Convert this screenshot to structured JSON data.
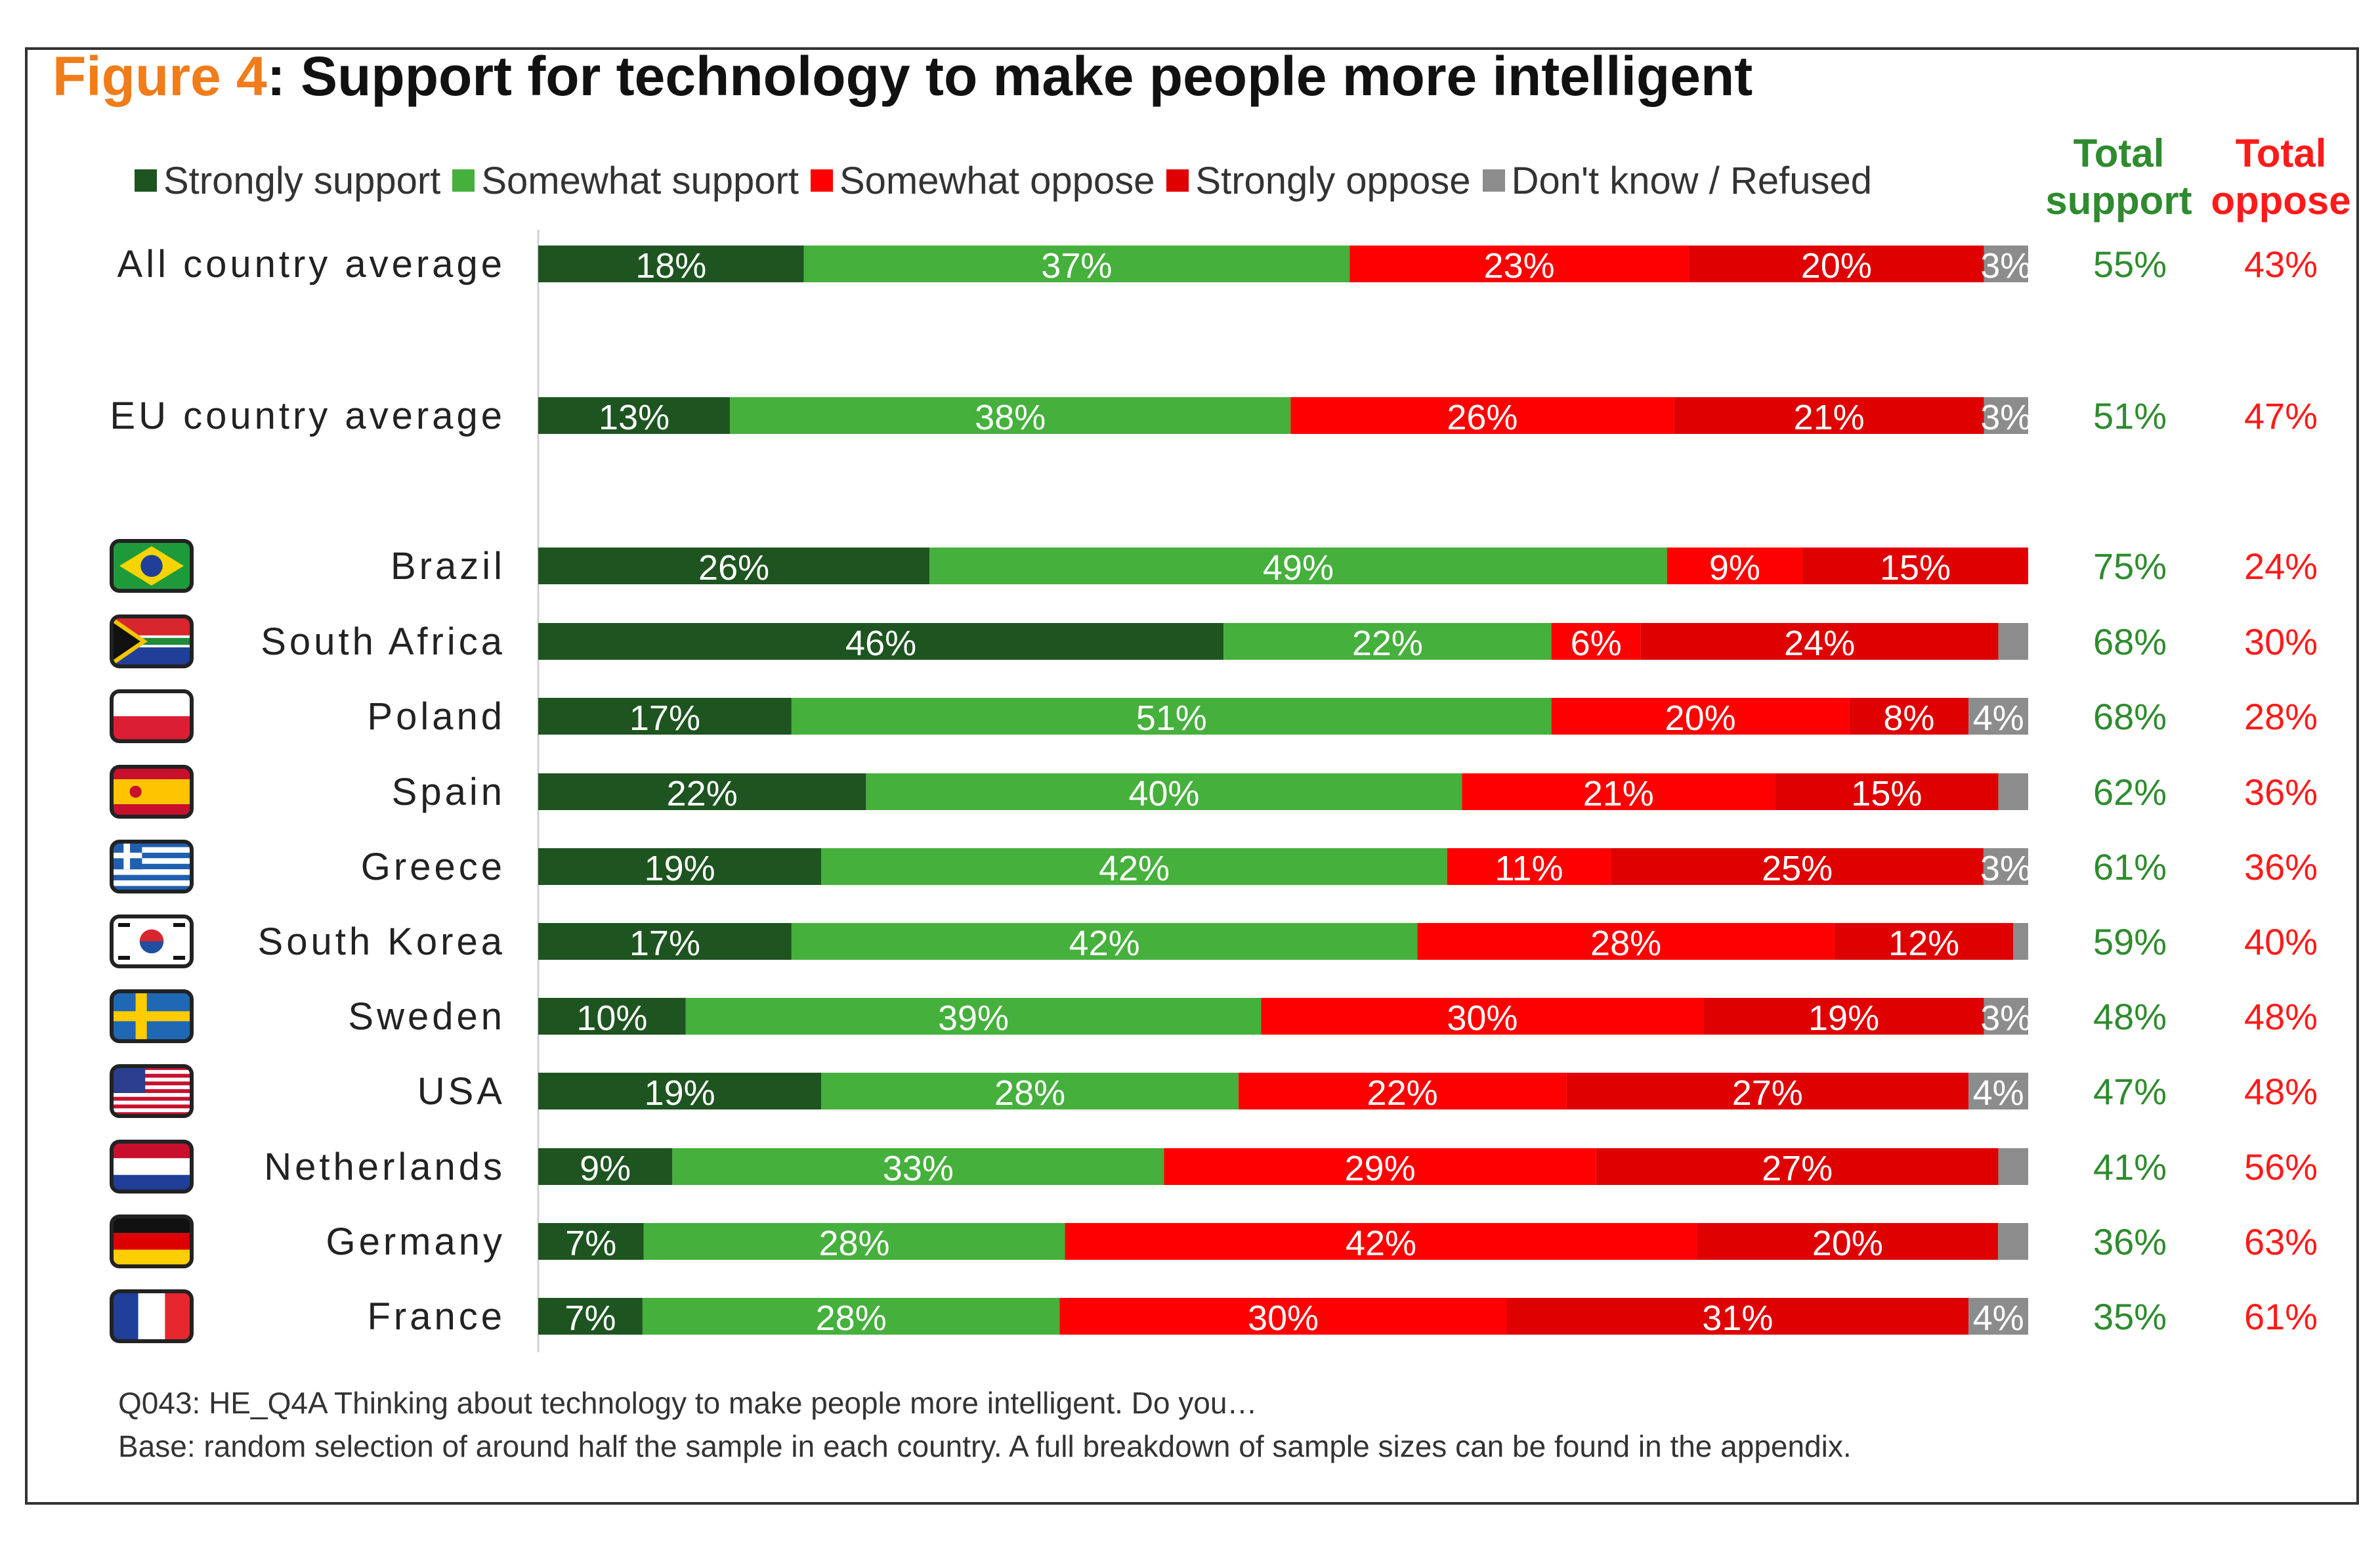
{
  "header": {
    "figure_label": "Figure 4",
    "title_rest": ": Support for technology to make people more intelligent"
  },
  "legend": [
    {
      "label": "Strongly support",
      "color": "#1e5420"
    },
    {
      "label": "Somewhat support",
      "color": "#45b03c"
    },
    {
      "label": "Somewhat oppose",
      "color": "#ff0000"
    },
    {
      "label": "Strongly oppose",
      "color": "#df0000"
    },
    {
      "label": "Don't know / Refused",
      "color": "#8c8c8c"
    }
  ],
  "columns": {
    "total_support": {
      "line1": "Total",
      "line2": "support",
      "color": "#2e8b2e"
    },
    "total_oppose": {
      "line1": "Total",
      "line2": "oppose",
      "color": "#ff1a1a"
    }
  },
  "chart_data": {
    "type": "bar",
    "orientation": "horizontal",
    "stacked": true,
    "xlim": [
      0,
      100
    ],
    "categories": [
      "All country average",
      "EU country average",
      "Brazil",
      "South Africa",
      "Poland",
      "Spain",
      "Greece",
      "South Korea",
      "Sweden",
      "USA",
      "Netherlands",
      "Germany",
      "France"
    ],
    "flags": [
      null,
      null,
      "brazil",
      "south-africa",
      "poland",
      "spain",
      "greece",
      "south-korea",
      "sweden",
      "usa",
      "netherlands",
      "germany",
      "france"
    ],
    "series": [
      {
        "name": "Strongly support",
        "values": [
          18,
          13,
          26,
          46,
          17,
          22,
          19,
          17,
          10,
          19,
          9,
          7,
          7
        ],
        "labels": [
          "18%",
          "13%",
          "26%",
          "46%",
          "17%",
          "22%",
          "19%",
          "17%",
          "10%",
          "19%",
          "9%",
          "7%",
          "7%"
        ]
      },
      {
        "name": "Somewhat support",
        "values": [
          37,
          38,
          49,
          22,
          51,
          40,
          42,
          42,
          39,
          28,
          33,
          28,
          28
        ],
        "labels": [
          "37%",
          "38%",
          "49%",
          "22%",
          "51%",
          "40%",
          "42%",
          "42%",
          "39%",
          "28%",
          "33%",
          "28%",
          "28%"
        ]
      },
      {
        "name": "Somewhat oppose",
        "values": [
          23,
          26,
          9,
          6,
          20,
          21,
          11,
          28,
          30,
          22,
          29,
          42,
          30
        ],
        "labels": [
          "23%",
          "26%",
          "9%",
          "6%",
          "20%",
          "21%",
          "11%",
          "28%",
          "30%",
          "22%",
          "29%",
          "42%",
          "30%"
        ]
      },
      {
        "name": "Strongly oppose",
        "values": [
          20,
          21,
          15,
          24,
          8,
          15,
          25,
          12,
          19,
          27,
          27,
          20,
          31
        ],
        "labels": [
          "20%",
          "21%",
          "15%",
          "24%",
          "8%",
          "15%",
          "25%",
          "12%",
          "19%",
          "27%",
          "27%",
          "20%",
          "31%"
        ]
      },
      {
        "name": "Don't know / Refused",
        "values": [
          3,
          3,
          0,
          2,
          4,
          2,
          3,
          1,
          3,
          4,
          2,
          2,
          4
        ],
        "labels": [
          "3%",
          "3%",
          "",
          "",
          "4%",
          "",
          "3%",
          "",
          "3%",
          "4%",
          "",
          "",
          "4%"
        ]
      }
    ],
    "total_support": [
      "55%",
      "51%",
      "75%",
      "68%",
      "68%",
      "62%",
      "61%",
      "59%",
      "48%",
      "47%",
      "41%",
      "36%",
      "35%"
    ],
    "total_oppose": [
      "43%",
      "47%",
      "24%",
      "30%",
      "28%",
      "36%",
      "36%",
      "40%",
      "48%",
      "48%",
      "56%",
      "63%",
      "61%"
    ]
  },
  "footnote": {
    "line1": "Q043: HE_Q4A Thinking  about technology  to make people more intelligent.  Do you…",
    "line2": "Base: random selection of around  half the  sample  in each country.  A full  breakdown of sample sizes can be found  in the  appendix."
  }
}
